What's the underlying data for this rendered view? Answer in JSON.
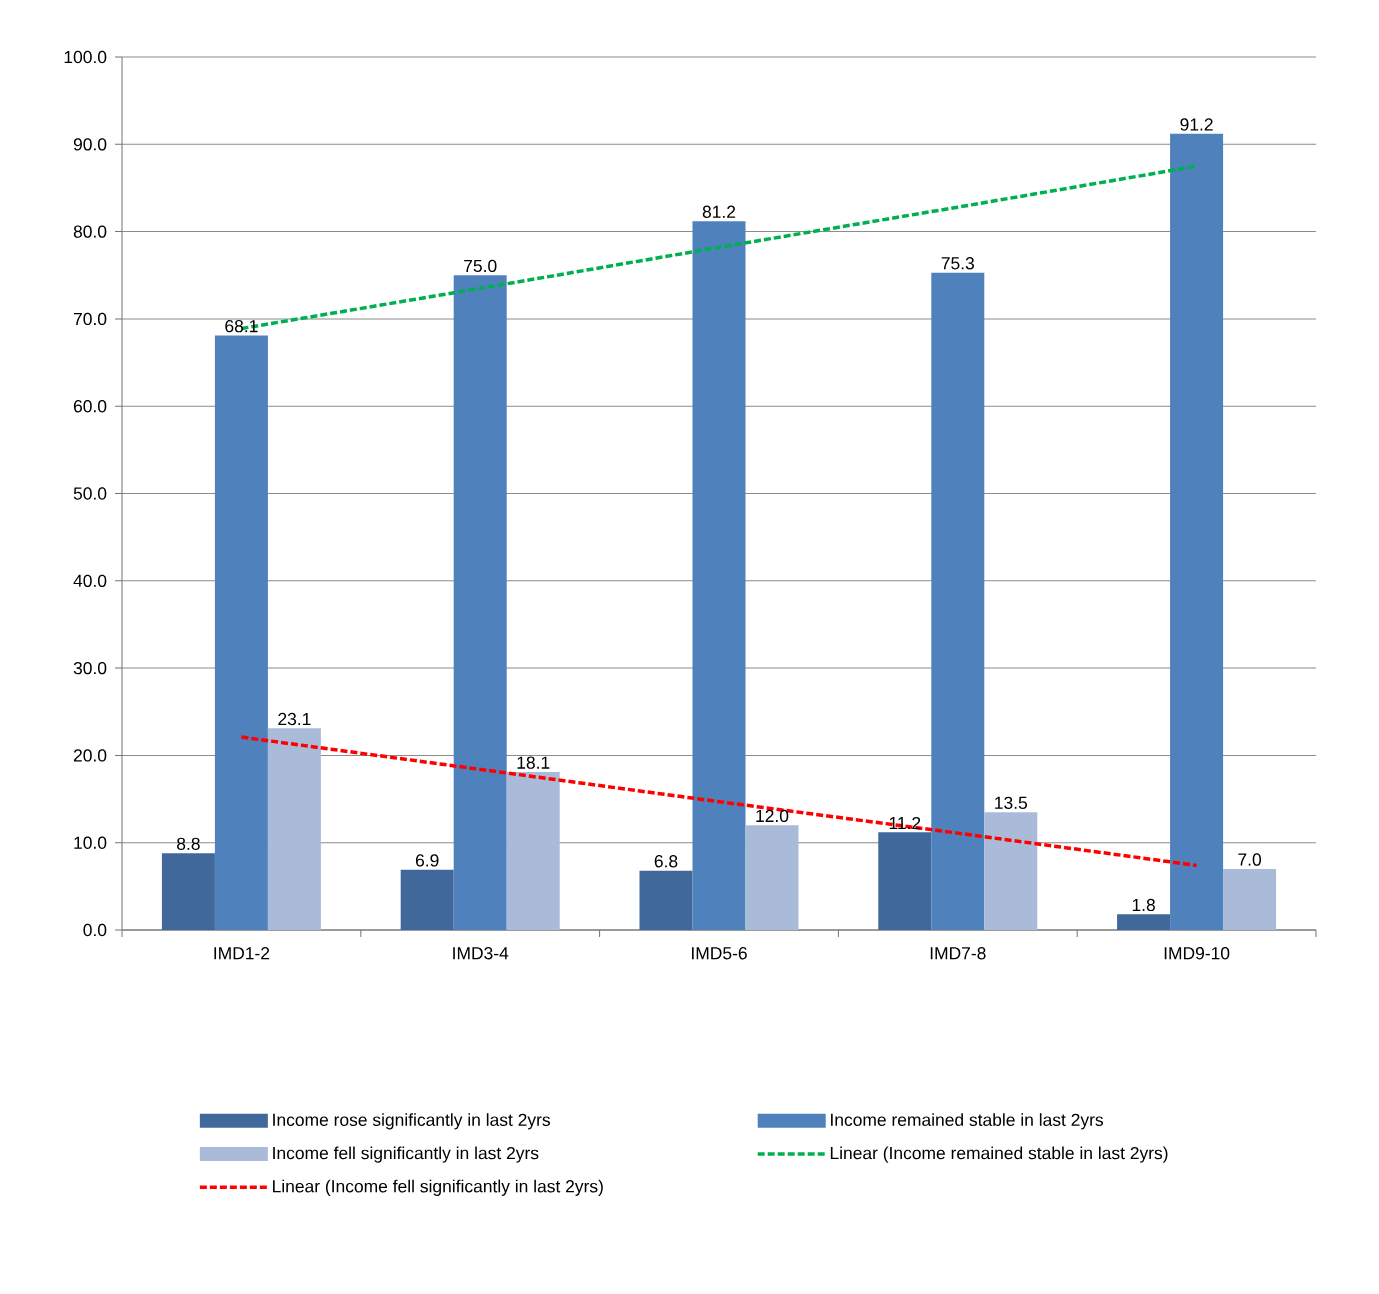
{
  "chart_data": {
    "type": "bar",
    "categories": [
      "IMD1-2",
      "IMD3-4",
      "IMD5-6",
      "IMD7-8",
      "IMD9-10"
    ],
    "series": [
      {
        "name": "Income rose significantly in last 2yrs",
        "color": "#41689b",
        "values": [
          8.8,
          6.9,
          6.8,
          11.2,
          1.8
        ],
        "value_labels": [
          "8.8",
          "6.9",
          "6.8",
          "11.2",
          "1.8"
        ]
      },
      {
        "name": "Income remained stable in last 2yrs",
        "color": "#4f81bd",
        "values": [
          68.1,
          75.0,
          81.2,
          75.3,
          91.2
        ],
        "value_labels": [
          "68.1",
          "75.0",
          "81.2",
          "75.3",
          "91.2"
        ]
      },
      {
        "name": "Income fell significantly in last 2yrs",
        "color": "#aabbd9",
        "values": [
          23.1,
          18.1,
          12.0,
          13.5,
          7.0
        ],
        "value_labels": [
          "23.1",
          "18.1",
          "12.0",
          "13.5",
          "7.0"
        ]
      },
      {
        "name": "Linear (Income remained stable in last 2yrs)",
        "type": "line",
        "line_style": "dashed",
        "color": "#00b050",
        "values": [
          68.9,
          73.5,
          78.2,
          82.8,
          87.5
        ]
      },
      {
        "name": "Linear (Income fell significantly in last 2yrs)",
        "type": "line",
        "line_style": "dashed",
        "color": "#ff0000",
        "values": [
          22.1,
          18.4,
          14.7,
          11.1,
          7.4
        ]
      }
    ],
    "ylim": [
      0,
      100
    ],
    "yticks": [
      {
        "value": 0,
        "label": "0.0"
      },
      {
        "value": 10,
        "label": "10.0"
      },
      {
        "value": 20,
        "label": "20.0"
      },
      {
        "value": 30,
        "label": "30.0"
      },
      {
        "value": 40,
        "label": "40.0"
      },
      {
        "value": 50,
        "label": "50.0"
      },
      {
        "value": 60,
        "label": "60.0"
      },
      {
        "value": 70,
        "label": "70.0"
      },
      {
        "value": 80,
        "label": "80.0"
      },
      {
        "value": 90,
        "label": "90.0"
      },
      {
        "value": 100,
        "label": "100.0"
      }
    ],
    "grid": "y",
    "legend": "bottom"
  }
}
